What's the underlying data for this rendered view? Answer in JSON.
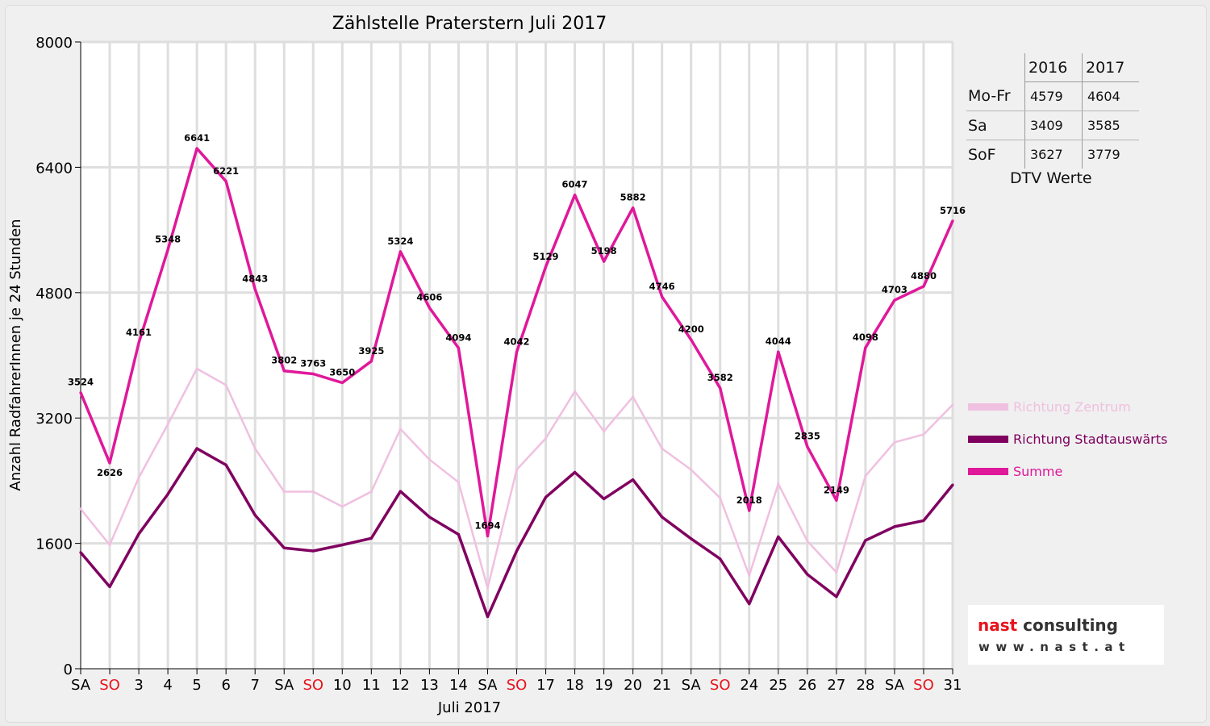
{
  "chart_data": {
    "type": "line",
    "title": "Zählstelle Praterstern Juli 2017",
    "xlabel": "Juli 2017",
    "ylabel": "Anzahl RadfahrerInnen je 24 Stunden",
    "ylim": [
      0,
      8000
    ],
    "yticks": [
      0,
      1600,
      3200,
      4800,
      6400,
      8000
    ],
    "grid": true,
    "legend_position": "right",
    "categories": [
      "SA",
      "SO",
      "3",
      "4",
      "5",
      "6",
      "7",
      "SA",
      "SO",
      "10",
      "11",
      "12",
      "13",
      "14",
      "SA",
      "SO",
      "17",
      "18",
      "19",
      "20",
      "21",
      "SA",
      "SO",
      "24",
      "25",
      "26",
      "27",
      "28",
      "SA",
      "SO",
      "31"
    ],
    "weekend_flags": [
      false,
      true,
      false,
      false,
      false,
      false,
      false,
      false,
      true,
      false,
      false,
      false,
      false,
      false,
      false,
      true,
      false,
      false,
      false,
      false,
      false,
      false,
      true,
      false,
      false,
      false,
      false,
      false,
      false,
      true,
      false
    ],
    "weekend_color": "#e8121b",
    "series": [
      {
        "name": "Richtung Zentrum",
        "color": "#f0c0e0",
        "values": [
          2040,
          1580,
          2440,
          3120,
          3830,
          3620,
          2810,
          2260,
          2260,
          2070,
          2260,
          3060,
          2670,
          2380,
          1030,
          2540,
          2940,
          3540,
          3030,
          3470,
          2810,
          2540,
          2180,
          1190,
          2360,
          1630,
          1230,
          2460,
          2890,
          2990,
          3370
        ]
      },
      {
        "name": "Richtung Stadtauswärts",
        "color": "#800060",
        "values": [
          1484,
          1046,
          1721,
          2228,
          2811,
          2601,
          1960,
          1542,
          1503,
          1580,
          1665,
          2264,
          1936,
          1714,
          664,
          1502,
          2189,
          2507,
          2168,
          2412,
          1936,
          1660,
          1402,
          828,
          1684,
          1205,
          919,
          1638,
          1813,
          1890,
          2346
        ]
      },
      {
        "name": "Summe",
        "color": "#e0189a",
        "values": [
          3524,
          2626,
          4161,
          5348,
          6641,
          6221,
          4843,
          3802,
          3763,
          3650,
          3925,
          5324,
          4606,
          4094,
          1694,
          4042,
          5129,
          6047,
          5198,
          5882,
          4746,
          4200,
          3582,
          2018,
          4044,
          2835,
          2149,
          4098,
          4703,
          4880,
          5716
        ]
      }
    ]
  },
  "dtv_table": {
    "headers": [
      "",
      "2016",
      "2017"
    ],
    "rows": [
      {
        "label": "Mo-Fr",
        "v2016": "4579",
        "v2017": "4604"
      },
      {
        "label": "Sa",
        "v2016": "3409",
        "v2017": "3585"
      },
      {
        "label": "SoF",
        "v2016": "3627",
        "v2017": "3779"
      }
    ],
    "caption": "DTV Werte"
  },
  "logo": {
    "name_part1": "nast",
    "name_part2": "consulting",
    "url": "www.nast.at",
    "color1": "#e8121b",
    "color2": "#333333"
  }
}
